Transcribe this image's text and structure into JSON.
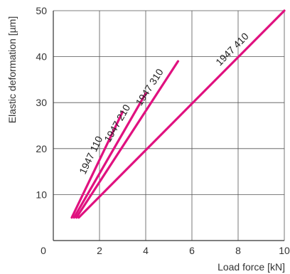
{
  "chart_data": {
    "type": "line",
    "xlabel": "Load force [kN]",
    "ylabel": "Elastic deformation [µm]",
    "xlim": [
      0,
      10
    ],
    "ylim": [
      0,
      50
    ],
    "grid": true,
    "x_ticks": [
      {
        "value": 0,
        "label": "0"
      },
      {
        "value": 2,
        "label": "2"
      },
      {
        "value": 4,
        "label": "4"
      },
      {
        "value": 6,
        "label": "6"
      },
      {
        "value": 8,
        "label": "8"
      },
      {
        "value": 10,
        "label": "10"
      }
    ],
    "y_ticks": [
      {
        "value": 10,
        "label": "10"
      },
      {
        "value": 20,
        "label": "20"
      },
      {
        "value": 30,
        "label": "30"
      },
      {
        "value": 40,
        "label": "40"
      },
      {
        "value": 50,
        "label": "50"
      }
    ],
    "line_color": "#e0117f",
    "series": [
      {
        "name": "1947 110",
        "x": [
          0.8,
          3.0
        ],
        "y": [
          5,
          28
        ]
      },
      {
        "name": "1947 210",
        "x": [
          0.9,
          4.0
        ],
        "y": [
          5,
          32
        ]
      },
      {
        "name": "1947 310",
        "x": [
          1.0,
          5.4
        ],
        "y": [
          5,
          39
        ]
      },
      {
        "name": "1947 410",
        "x": [
          1.1,
          10.0
        ],
        "y": [
          5,
          50
        ]
      }
    ]
  }
}
